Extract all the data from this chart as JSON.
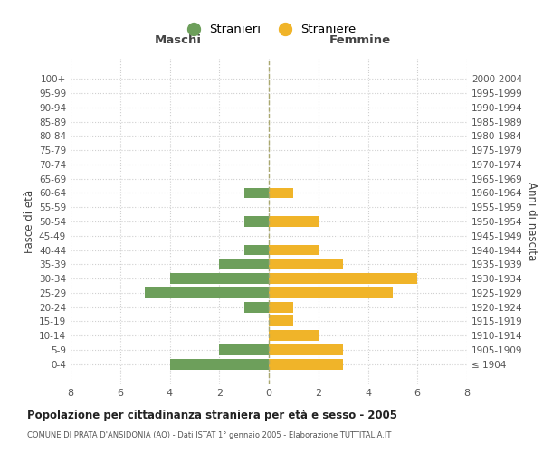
{
  "age_groups": [
    "100+",
    "95-99",
    "90-94",
    "85-89",
    "80-84",
    "75-79",
    "70-74",
    "65-69",
    "60-64",
    "55-59",
    "50-54",
    "45-49",
    "40-44",
    "35-39",
    "30-34",
    "25-29",
    "20-24",
    "15-19",
    "10-14",
    "5-9",
    "0-4"
  ],
  "birth_years": [
    "≤ 1904",
    "1905-1909",
    "1910-1914",
    "1915-1919",
    "1920-1924",
    "1925-1929",
    "1930-1934",
    "1935-1939",
    "1940-1944",
    "1945-1949",
    "1950-1954",
    "1955-1959",
    "1960-1964",
    "1965-1969",
    "1970-1974",
    "1975-1979",
    "1980-1984",
    "1985-1989",
    "1990-1994",
    "1995-1999",
    "2000-2004"
  ],
  "maschi": [
    0,
    0,
    0,
    0,
    0,
    0,
    0,
    0,
    1,
    0,
    1,
    0,
    1,
    2,
    4,
    5,
    1,
    0,
    0,
    2,
    4
  ],
  "femmine": [
    0,
    0,
    0,
    0,
    0,
    0,
    0,
    0,
    1,
    0,
    2,
    0,
    2,
    3,
    6,
    5,
    1,
    1,
    2,
    3,
    3
  ],
  "color_maschi": "#6d9f5b",
  "color_femmine": "#f0b429",
  "title": "Popolazione per cittadinanza straniera per età e sesso - 2005",
  "subtitle": "COMUNE DI PRATA D'ANSIDONIA (AQ) - Dati ISTAT 1° gennaio 2005 - Elaborazione TUTTITALIA.IT",
  "ylabel_left": "Fasce di età",
  "ylabel_right": "Anni di nascita",
  "xlabel_maschi": "Maschi",
  "xlabel_femmine": "Femmine",
  "legend_maschi": "Stranieri",
  "legend_femmine": "Straniere",
  "xlim": 8,
  "bg_color": "#ffffff",
  "grid_color": "#d0d0d0"
}
